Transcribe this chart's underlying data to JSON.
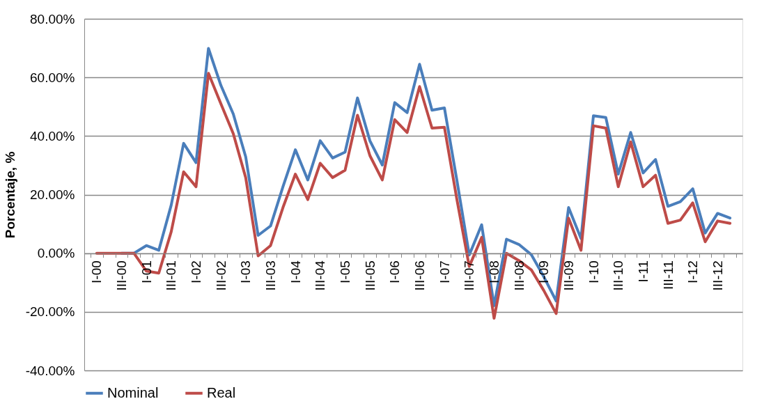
{
  "chart_data": {
    "type": "line",
    "ylabel": "Porcentaje, %",
    "categories": [
      "I-00",
      null,
      "III-00",
      null,
      "I-01",
      null,
      "III-01",
      null,
      "I-02",
      null,
      "III-02",
      null,
      "I-03",
      null,
      "III-03",
      null,
      "I-04",
      null,
      "III-04",
      null,
      "I-05",
      null,
      "III-05",
      null,
      "I-06",
      null,
      "III-06",
      null,
      "I-07",
      null,
      "III-07",
      null,
      "I-08",
      null,
      "III-08",
      null,
      "I-09",
      null,
      "III-09",
      null,
      "I-10",
      null,
      "III-10",
      null,
      "I-11",
      null,
      "III-11",
      null,
      "I-12",
      null,
      "III-12",
      null
    ],
    "series": [
      {
        "name": "Nominal",
        "color": "#4a7ebb",
        "values": [
          null,
          null,
          0,
          0,
          2.6,
          1.0,
          16.4,
          37.5,
          30.9,
          69.9,
          57.3,
          47.5,
          32.9,
          6.1,
          9.3,
          22.7,
          35.3,
          25.0,
          38.4,
          32.5,
          34.5,
          53.0,
          38.4,
          30.1,
          51.4,
          48.0,
          64.5,
          48.8,
          49.6,
          25.0,
          -0.6,
          9.7,
          -17.9,
          4.8,
          3.0,
          -0.5,
          -8.0,
          -16.3,
          15.6,
          5.0,
          46.9,
          46.3,
          27.0,
          41.2,
          27.4,
          32.0,
          16.0,
          17.6,
          22.0,
          6.9,
          13.6,
          12.0
        ]
      },
      {
        "name": "Real",
        "color": "#be4b48",
        "values": [
          0,
          0,
          0,
          0,
          -6.1,
          -6.8,
          7.3,
          27.8,
          22.7,
          61.4,
          51.0,
          40.8,
          25.8,
          -0.9,
          2.6,
          15.6,
          27.0,
          18.3,
          30.7,
          25.8,
          28.3,
          47.1,
          33.3,
          25.0,
          45.6,
          41.2,
          56.9,
          42.7,
          43.0,
          18.5,
          -4.5,
          5.4,
          -22.2,
          0,
          -2.5,
          -5.7,
          -12.7,
          -20.6,
          12.0,
          1.0,
          43.5,
          42.7,
          22.7,
          38.0,
          22.7,
          26.6,
          10.2,
          11.3,
          17.2,
          3.9,
          11.0,
          10.2
        ]
      }
    ],
    "ylim": [
      -40,
      80
    ],
    "yticks": [
      {
        "value": -40,
        "label": "-40.00%"
      },
      {
        "value": -20,
        "label": "-20.00%"
      },
      {
        "value": 0,
        "label": "0.00%"
      },
      {
        "value": 20,
        "label": "20.00%"
      },
      {
        "value": 40,
        "label": "40.00%"
      },
      {
        "value": 60,
        "label": "60.00%"
      },
      {
        "value": 80,
        "label": "80.00%"
      }
    ],
    "grid": "y",
    "legend": "bottom",
    "marker": "none",
    "line_style": "solid"
  }
}
